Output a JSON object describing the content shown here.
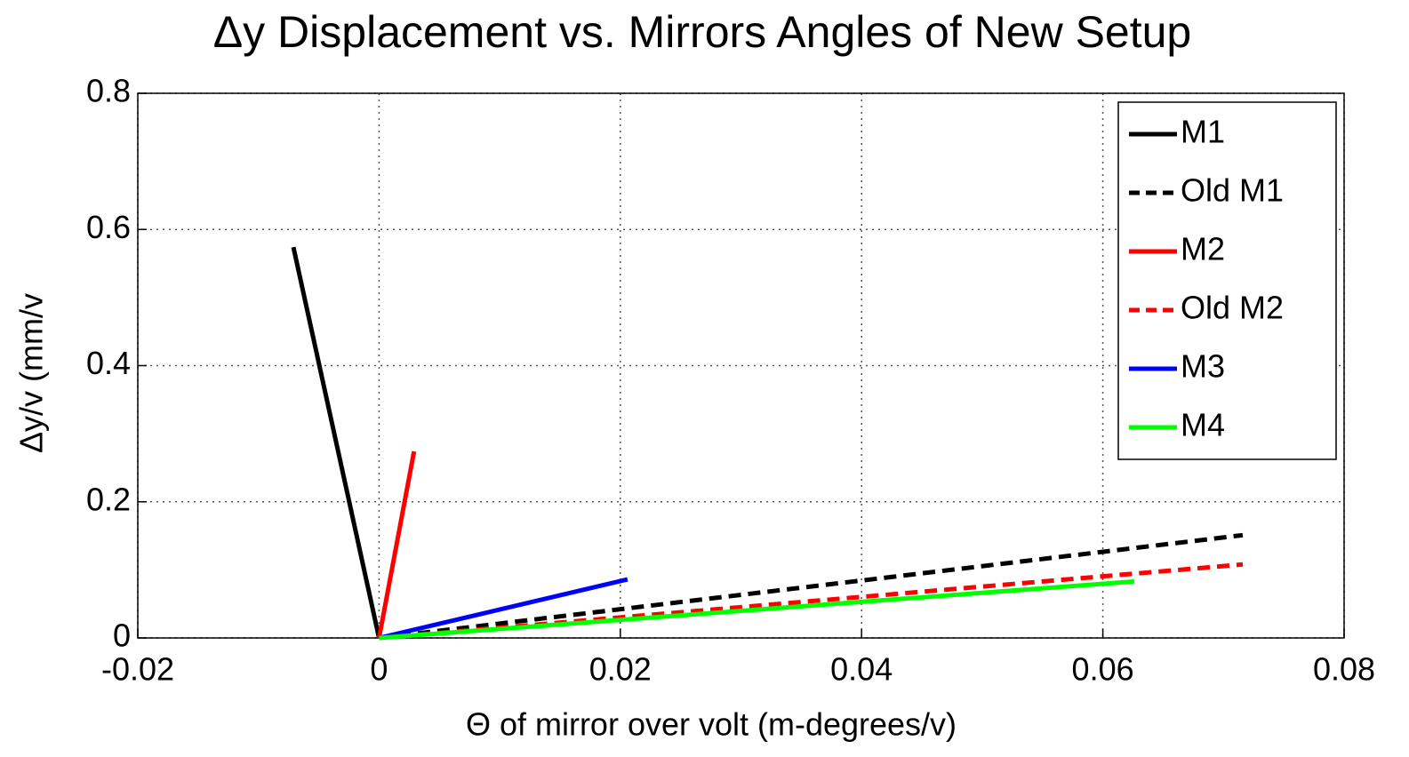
{
  "chart_data": {
    "type": "line",
    "title": "Δy Displacement vs. Mirrors Angles of New Setup",
    "xlabel": "Θ of mirror over volt (m-degrees/v)",
    "ylabel": "Δy/v (mm/v",
    "xlim": [
      -0.02,
      0.08
    ],
    "xticks": [
      -0.02,
      0,
      0.02,
      0.04,
      0.06,
      0.08
    ],
    "ylim": [
      0,
      0.8
    ],
    "yticks": [
      0,
      0.2,
      0.4,
      0.6,
      0.8
    ],
    "grid": true,
    "legend": "upper right",
    "series": [
      {
        "name": "M1",
        "color": "#000000",
        "dashed": false,
        "x": [
          0,
          -0.0071
        ],
        "values": [
          0,
          0.574
        ]
      },
      {
        "name": "Old M1",
        "color": "#000000",
        "dashed": true,
        "x": [
          0,
          0.0716
        ],
        "values": [
          0,
          0.151
        ]
      },
      {
        "name": "M2",
        "color": "#ff0000",
        "dashed": false,
        "x": [
          0,
          0.0029
        ],
        "values": [
          0,
          0.274
        ]
      },
      {
        "name": "Old M2",
        "color": "#ff0000",
        "dashed": true,
        "x": [
          0,
          0.0716
        ],
        "values": [
          0,
          0.108
        ]
      },
      {
        "name": "M3",
        "color": "#0000ff",
        "dashed": false,
        "x": [
          0,
          0.0206
        ],
        "values": [
          0,
          0.086
        ]
      },
      {
        "name": "M4",
        "color": "#00ff00",
        "dashed": false,
        "x": [
          0,
          0.0626
        ],
        "values": [
          0,
          0.083
        ]
      }
    ]
  }
}
